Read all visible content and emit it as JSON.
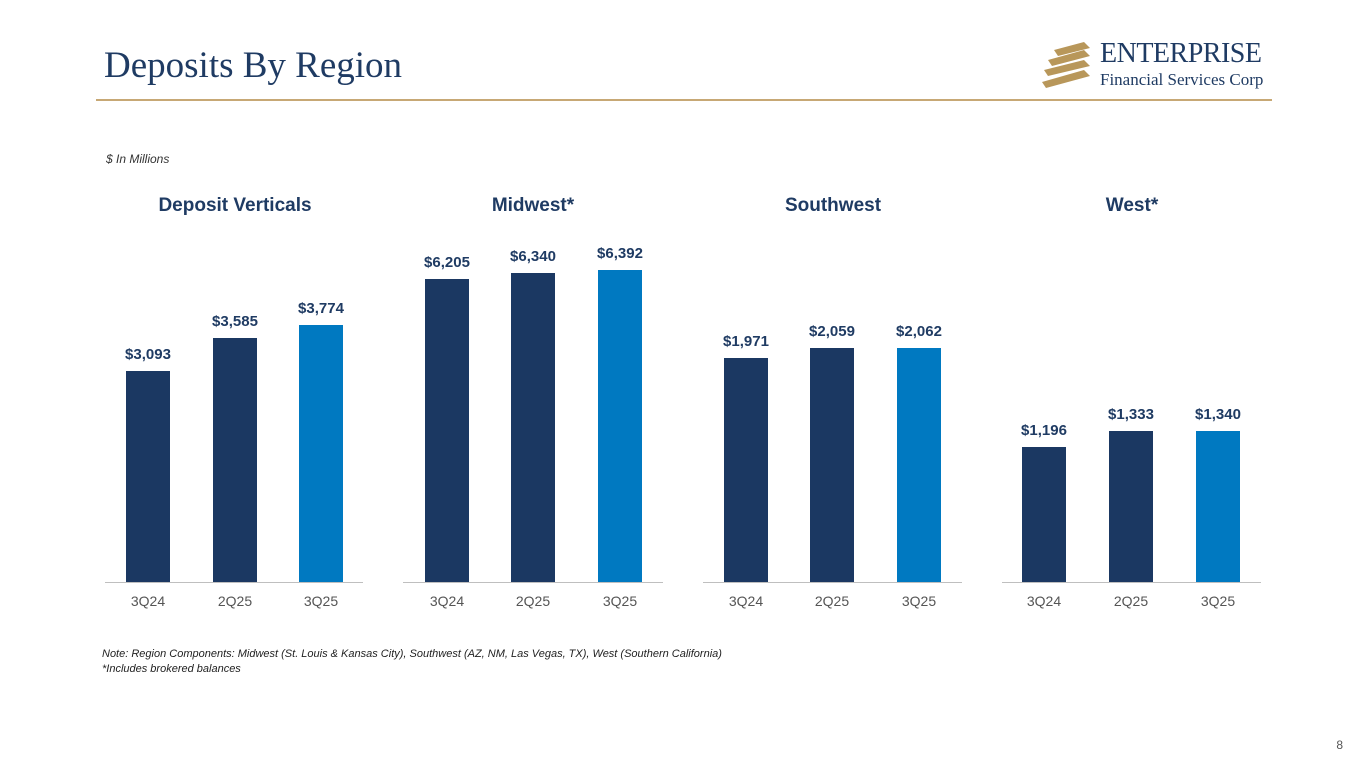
{
  "header": {
    "title": "Deposits By Region",
    "logo_line1": "ENTERPRISE",
    "logo_line2": "Financial Services Corp"
  },
  "units_label": "$ In Millions",
  "colors": {
    "prior": "#1b3862",
    "current": "#0079c1",
    "gold": "#c7a875"
  },
  "chart_data": [
    {
      "type": "bar",
      "title": "Deposit Verticals",
      "categories": [
        "3Q24",
        "2Q25",
        "3Q25"
      ],
      "values": [
        3093,
        3585,
        3774
      ],
      "labels": [
        "$3,093",
        "$3,585",
        "$3,774"
      ]
    },
    {
      "type": "bar",
      "title": "Midwest*",
      "categories": [
        "3Q24",
        "2Q25",
        "3Q25"
      ],
      "values": [
        6205,
        6340,
        6392
      ],
      "labels": [
        "$6,205",
        "$6,340",
        "$6,392"
      ]
    },
    {
      "type": "bar",
      "title": "Southwest",
      "categories": [
        "3Q24",
        "2Q25",
        "3Q25"
      ],
      "values": [
        1971,
        2059,
        2062
      ],
      "labels": [
        "$1,971",
        "$2,059",
        "$2,062"
      ]
    },
    {
      "type": "bar",
      "title": "West*",
      "categories": [
        "3Q24",
        "2Q25",
        "3Q25"
      ],
      "values": [
        1196,
        1333,
        1340
      ],
      "labels": [
        "$1,196",
        "$1,333",
        "$1,340"
      ]
    }
  ],
  "notes": {
    "line1": "Note: Region Components: Midwest (St. Louis & Kansas City), Southwest (AZ, NM, Las Vegas, TX), West (Southern California)",
    "line2": "*Includes brokered balances"
  },
  "page_number": "8"
}
